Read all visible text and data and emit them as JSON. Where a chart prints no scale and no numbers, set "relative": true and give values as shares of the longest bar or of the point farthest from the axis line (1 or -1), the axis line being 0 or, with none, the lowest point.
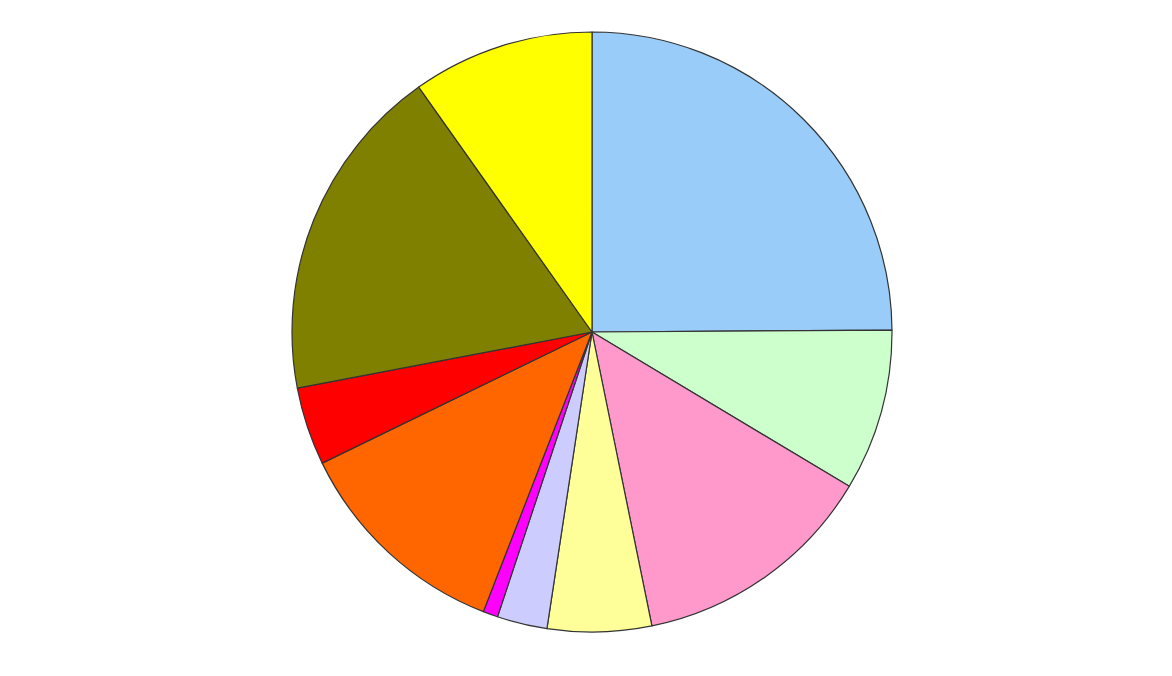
{
  "chart_data": {
    "type": "pie",
    "relative": true,
    "categories": [
      null,
      null,
      null,
      null,
      null,
      null,
      null,
      null,
      null,
      null
    ],
    "values": [
      24.9,
      8.7,
      13.2,
      5.6,
      2.7,
      0.8,
      11.9,
      4.2,
      18.2,
      9.8
    ],
    "colors": [
      "#99ccf8",
      "#ccffcc",
      "#ff99cc",
      "#ffff99",
      "#ccccff",
      "#ff00ff",
      "#ff6600",
      "#ff0000",
      "#808000",
      "#ffff00"
    ]
  }
}
